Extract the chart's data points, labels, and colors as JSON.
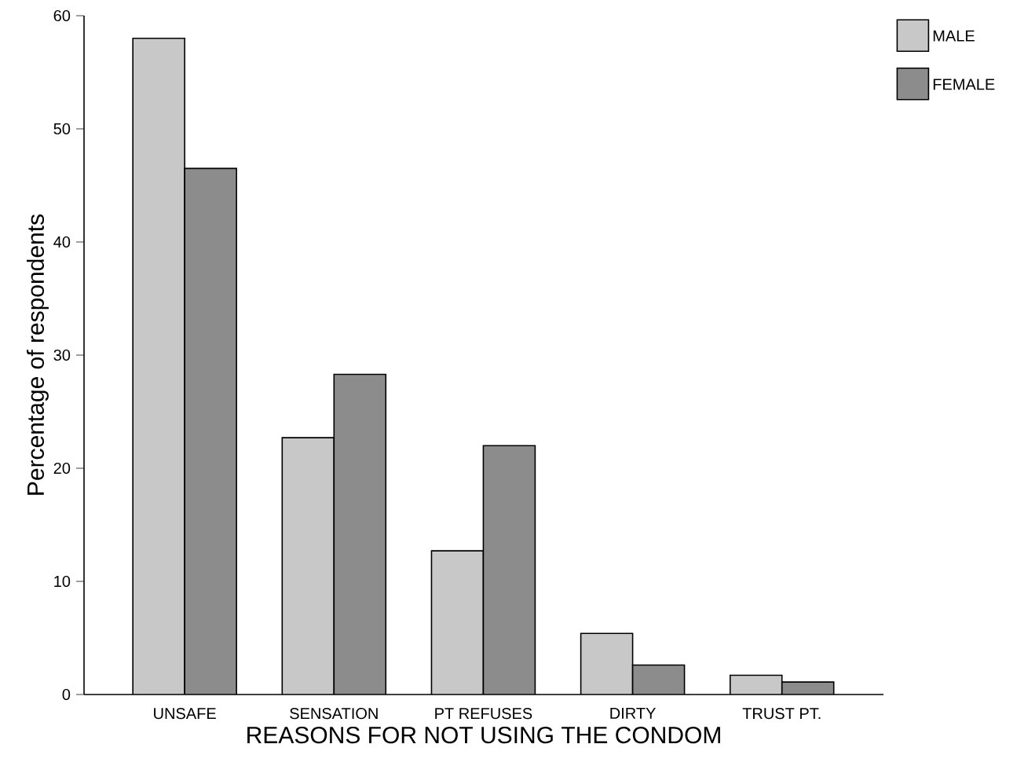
{
  "chart_data": {
    "type": "bar",
    "xlabel": "REASONS FOR NOT USING THE CONDOM",
    "ylabel": "Percentage of respondents",
    "categories": [
      "UNSAFE",
      "SENSATION",
      "PT REFUSES",
      "DIRTY",
      "TRUST PT."
    ],
    "series": [
      {
        "name": "MALE",
        "color": "#c8c8c8",
        "values": [
          58,
          22.7,
          12.7,
          5.4,
          1.7
        ]
      },
      {
        "name": "FEMALE",
        "color": "#8c8c8c",
        "values": [
          46.5,
          28.3,
          22.0,
          2.6,
          1.1
        ]
      }
    ],
    "ylim": [
      0,
      60
    ],
    "yticks": [
      0,
      10,
      20,
      30,
      40,
      50,
      60
    ],
    "grid": false,
    "legend": "top right"
  }
}
